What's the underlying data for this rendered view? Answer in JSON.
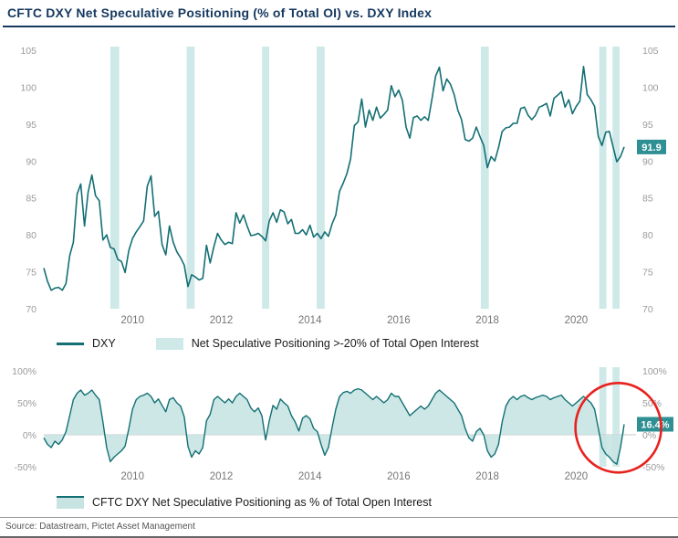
{
  "title": "CFTC DXY Net Speculative Positioning (% of Total OI) vs. DXY Index",
  "source": "Source: Datastream, Pictet Asset Management",
  "colors": {
    "line": "#136f74",
    "band": "#cfe9e9",
    "area": "#c7e4e2",
    "badge": "#2f9094",
    "title": "#16395f",
    "annotation": "#e8211d"
  },
  "legend1": {
    "line_label": "DXY",
    "band_label": "Net Speculative Positioning >-20% of Total Open Interest"
  },
  "legend2": {
    "label": "CFTC DXY Net Speculative Positioning as % of Total Open Interest"
  },
  "chart_data": [
    {
      "type": "line",
      "name": "DXY Index",
      "x_start": 2008,
      "points_per_year": 12,
      "ylim": [
        70,
        105
      ],
      "yticks": [
        105,
        100,
        95,
        90,
        85,
        80,
        75,
        70
      ],
      "xticks": [
        2010,
        2012,
        2014,
        2016,
        2018,
        2020
      ],
      "end_label": "91.9",
      "bands": [
        [
          2009.5,
          2009.7
        ],
        [
          2011.22,
          2011.4
        ],
        [
          2012.92,
          2013.08
        ],
        [
          2014.15,
          2014.33
        ],
        [
          2017.85,
          2018.03
        ],
        [
          2020.52,
          2020.68
        ],
        [
          2020.82,
          2020.98
        ]
      ],
      "values": [
        75.5,
        73.7,
        72.5,
        72.8,
        72.9,
        72.5,
        73.4,
        77.2,
        79.0,
        85.5,
        86.9,
        81.2,
        85.8,
        88.1,
        85.3,
        84.6,
        79.3,
        80.0,
        78.3,
        78.1,
        76.7,
        76.4,
        74.9,
        77.9,
        79.5,
        80.4,
        81.1,
        81.9,
        86.6,
        88.0,
        82.5,
        83.2,
        78.7,
        77.3,
        81.2,
        79.0,
        77.7,
        76.9,
        75.9,
        73.0,
        74.6,
        74.3,
        73.9,
        74.1,
        78.6,
        76.2,
        78.4,
        80.2,
        79.3,
        78.7,
        79.0,
        78.8,
        83.0,
        81.6,
        82.7,
        81.2,
        79.9,
        80.0,
        80.2,
        79.8,
        79.2,
        81.9,
        83.0,
        81.7,
        83.4,
        83.1,
        81.5,
        82.1,
        80.2,
        80.2,
        80.7,
        80.0,
        81.3,
        79.7,
        80.2,
        79.5,
        80.4,
        79.8,
        81.5,
        82.7,
        85.9,
        87.0,
        88.3,
        90.3,
        94.8,
        95.3,
        98.4,
        94.6,
        96.9,
        95.5,
        97.3,
        95.8,
        96.3,
        96.9,
        100.2,
        98.7,
        99.6,
        98.2,
        94.6,
        93.1,
        95.9,
        96.1,
        95.5,
        96.0,
        95.5,
        98.4,
        101.5,
        102.7,
        99.5,
        101.1,
        100.4,
        99.0,
        96.9,
        95.6,
        92.9,
        92.7,
        93.1,
        94.6,
        93.3,
        92.1,
        89.1,
        90.6,
        90.0,
        91.8,
        94.0,
        94.5,
        94.6,
        95.1,
        95.1,
        97.1,
        97.3,
        96.2,
        95.6,
        96.2,
        97.3,
        97.5,
        97.8,
        96.1,
        98.5,
        98.9,
        99.4,
        97.3,
        98.3,
        96.4,
        97.4,
        98.1,
        102.8,
        99.0,
        98.3,
        97.4,
        93.3,
        92.1,
        93.9,
        94.0,
        91.9,
        89.9,
        90.6,
        91.9
      ]
    },
    {
      "type": "area",
      "name": "CFTC DXY Net Speculative Positioning as % of Total Open Interest",
      "x_start": 2008,
      "points_per_year": 12,
      "ylim": [
        -50,
        100
      ],
      "yticks": [
        100,
        50,
        0,
        -50
      ],
      "ytick_suffix": "%",
      "xticks": [
        2010,
        2012,
        2014,
        2016,
        2018,
        2020
      ],
      "end_label": "16.4%",
      "bands": [
        [
          2020.52,
          2020.68
        ],
        [
          2020.82,
          2020.98
        ]
      ],
      "annotation": {
        "shape": "ellipse",
        "cx_year": 2020.95,
        "cy_value": 11,
        "rx": 47,
        "ry": 49
      },
      "values": [
        -5,
        -15,
        -20,
        -10,
        -15,
        -8,
        5,
        30,
        55,
        65,
        70,
        62,
        65,
        70,
        62,
        55,
        20,
        -20,
        -42,
        -35,
        -30,
        -25,
        -18,
        10,
        40,
        55,
        60,
        62,
        65,
        60,
        50,
        56,
        46,
        36,
        55,
        58,
        50,
        45,
        28,
        -18,
        -35,
        -25,
        -30,
        -20,
        22,
        32,
        55,
        60,
        55,
        50,
        56,
        50,
        60,
        65,
        60,
        55,
        42,
        36,
        42,
        30,
        -8,
        22,
        46,
        40,
        56,
        50,
        45,
        30,
        20,
        6,
        26,
        30,
        25,
        10,
        5,
        -15,
        -32,
        -20,
        12,
        40,
        60,
        66,
        68,
        65,
        70,
        72,
        70,
        65,
        60,
        55,
        60,
        55,
        50,
        55,
        65,
        60,
        60,
        50,
        40,
        30,
        35,
        40,
        45,
        40,
        45,
        55,
        65,
        70,
        65,
        60,
        55,
        50,
        40,
        30,
        10,
        -5,
        -10,
        5,
        10,
        0,
        -25,
        -35,
        -30,
        -15,
        20,
        45,
        55,
        60,
        55,
        60,
        62,
        58,
        55,
        58,
        60,
        62,
        60,
        55,
        58,
        60,
        62,
        55,
        50,
        45,
        50,
        55,
        60,
        55,
        50,
        40,
        10,
        -20,
        -30,
        -35,
        -42,
        -46,
        -20,
        16.4
      ]
    }
  ]
}
